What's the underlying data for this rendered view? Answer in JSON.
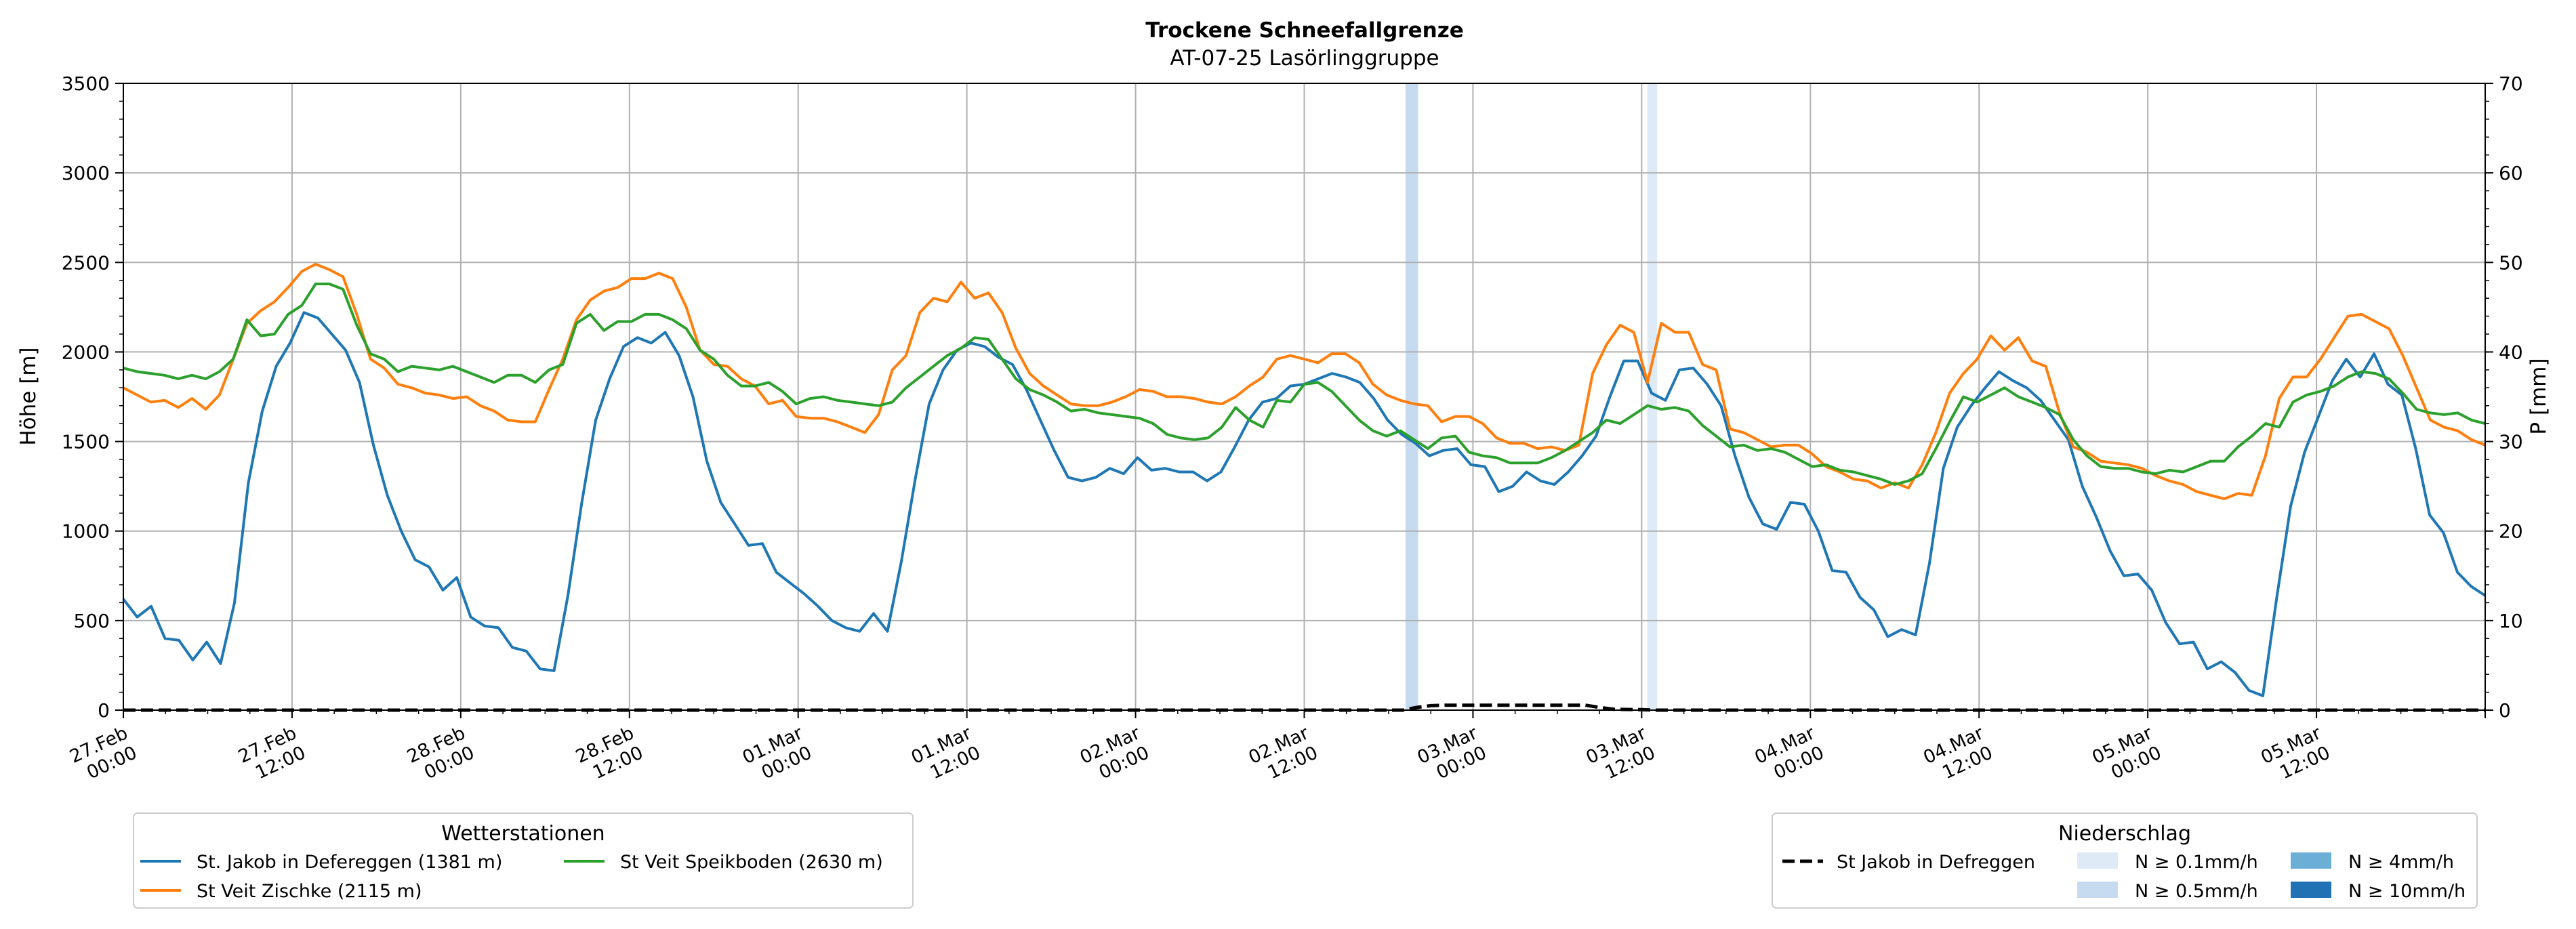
{
  "chart_data": {
    "type": "line",
    "title": "Trockene Schneefallgrenze",
    "subtitle": "AT-07-25 Lasörlinggruppe",
    "ylabel": "Höhe [m]",
    "y2label": "P [mm]",
    "ylim": [
      0,
      3500
    ],
    "y2lim": [
      0,
      70
    ],
    "xlim_hours": [
      0,
      168
    ],
    "grid": true,
    "yticks": [
      "0",
      "500",
      "1000",
      "1500",
      "2000",
      "2500",
      "3000",
      "3500"
    ],
    "y2ticks": [
      "0",
      "10",
      "20",
      "30",
      "40",
      "50",
      "60",
      "70"
    ],
    "xticks": [
      {
        "line1": "27.Feb",
        "line2": "00:00"
      },
      {
        "line1": "27.Feb",
        "line2": "12:00"
      },
      {
        "line1": "28.Feb",
        "line2": "00:00"
      },
      {
        "line1": "28.Feb",
        "line2": "12:00"
      },
      {
        "line1": "01.Mar",
        "line2": "00:00"
      },
      {
        "line1": "01.Mar",
        "line2": "12:00"
      },
      {
        "line1": "02.Mar",
        "line2": "00:00"
      },
      {
        "line1": "02.Mar",
        "line2": "12:00"
      },
      {
        "line1": "03.Mar",
        "line2": "00:00"
      },
      {
        "line1": "03.Mar",
        "line2": "12:00"
      },
      {
        "line1": "04.Mar",
        "line2": "00:00"
      },
      {
        "line1": "04.Mar",
        "line2": "12:00"
      },
      {
        "line1": "05.Mar",
        "line2": "00:00"
      },
      {
        "line1": "05.Mar",
        "line2": "12:00"
      }
    ],
    "precip_bands": [
      {
        "start": 91.2,
        "end": 92.1,
        "level": "N ≥ 0.5mm/h"
      },
      {
        "start": 108.4,
        "end": 109.1,
        "level": "N ≥ 0.1mm/h"
      }
    ],
    "colors": {
      "jakob": "#1f77b4",
      "zischke": "#ff7f0e",
      "speikboden": "#2ca02c",
      "precip": "#000000",
      "n01": "#deebf7",
      "n05": "#c6dbef",
      "n4": "#6baed6",
      "n10": "#2171b5",
      "grid": "#b0b0b0"
    },
    "series": [
      {
        "name": "St. Jakob in Defereggen (1381 m)",
        "color": "#1f77b4",
        "values": [
          620,
          520,
          580,
          400,
          390,
          280,
          380,
          260,
          600,
          1270,
          1670,
          1920,
          2050,
          2220,
          2190,
          2100,
          2010,
          1830,
          1480,
          1200,
          1000,
          840,
          800,
          670,
          740,
          520,
          470,
          460,
          350,
          330,
          230,
          220,
          640,
          1160,
          1620,
          1850,
          2030,
          2080,
          2050,
          2110,
          1980,
          1750,
          1390,
          1160,
          1040,
          920,
          930,
          770,
          710,
          650,
          580,
          500,
          460,
          440,
          540,
          440,
          830,
          1290,
          1710,
          1900,
          2010,
          2050,
          2030,
          1970,
          1930,
          1790,
          1620,
          1450,
          1300,
          1280,
          1300,
          1350,
          1320,
          1410,
          1340,
          1350,
          1330,
          1330,
          1280,
          1330,
          1470,
          1620,
          1720,
          1740,
          1810,
          1820,
          1850,
          1880,
          1860,
          1830,
          1740,
          1620,
          1540,
          1490,
          1420,
          1450,
          1460,
          1370,
          1360,
          1220,
          1250,
          1330,
          1280,
          1260,
          1330,
          1420,
          1530,
          1750,
          1950,
          1950,
          1770,
          1730,
          1900,
          1910,
          1820,
          1700,
          1420,
          1190,
          1040,
          1010,
          1160,
          1150,
          1000,
          780,
          770,
          630,
          560,
          410,
          450,
          420,
          820,
          1350,
          1580,
          1700,
          1800,
          1890,
          1840,
          1800,
          1730,
          1620,
          1510,
          1250,
          1080,
          890,
          750,
          760,
          670,
          490,
          370,
          380,
          230,
          270,
          210,
          110,
          80,
          630,
          1140,
          1440,
          1640,
          1840,
          1960,
          1860,
          1990,
          1820,
          1760,
          1460,
          1090,
          990,
          770,
          690,
          640
        ]
      },
      {
        "name": "St Veit Zischke (2115 m)",
        "color": "#ff7f0e",
        "values": [
          1800,
          1760,
          1720,
          1730,
          1690,
          1740,
          1680,
          1760,
          1960,
          2160,
          2230,
          2280,
          2360,
          2450,
          2490,
          2460,
          2420,
          2210,
          1960,
          1910,
          1820,
          1800,
          1770,
          1760,
          1740,
          1750,
          1700,
          1670,
          1620,
          1610,
          1610,
          1790,
          1960,
          2180,
          2290,
          2340,
          2360,
          2410,
          2410,
          2440,
          2410,
          2250,
          2010,
          1930,
          1920,
          1850,
          1810,
          1710,
          1730,
          1640,
          1630,
          1630,
          1610,
          1580,
          1550,
          1650,
          1900,
          1980,
          2220,
          2300,
          2280,
          2390,
          2300,
          2330,
          2220,
          2020,
          1880,
          1810,
          1760,
          1710,
          1700,
          1700,
          1720,
          1750,
          1790,
          1780,
          1750,
          1750,
          1740,
          1720,
          1710,
          1750,
          1810,
          1860,
          1960,
          1980,
          1960,
          1940,
          1990,
          1990,
          1940,
          1820,
          1760,
          1730,
          1710,
          1700,
          1610,
          1640,
          1640,
          1600,
          1520,
          1490,
          1490,
          1460,
          1470,
          1450,
          1480,
          1880,
          2040,
          2150,
          2110,
          1830,
          2160,
          2110,
          2110,
          1930,
          1900,
          1570,
          1550,
          1510,
          1470,
          1480,
          1480,
          1430,
          1360,
          1330,
          1290,
          1280,
          1240,
          1270,
          1240,
          1370,
          1550,
          1770,
          1880,
          1960,
          2090,
          2010,
          2080,
          1950,
          1920,
          1660,
          1470,
          1440,
          1390,
          1380,
          1370,
          1350,
          1310,
          1280,
          1260,
          1220,
          1200,
          1180,
          1210,
          1200,
          1420,
          1740,
          1860,
          1860,
          1960,
          2080,
          2200,
          2210,
          2170,
          2130,
          1980,
          1800,
          1620,
          1580,
          1560,
          1510,
          1480
        ]
      },
      {
        "name": "St Veit Speikboden (2630 m)",
        "color": "#2ca02c",
        "values": [
          1910,
          1890,
          1880,
          1870,
          1850,
          1870,
          1850,
          1890,
          1960,
          2180,
          2090,
          2100,
          2210,
          2260,
          2380,
          2380,
          2350,
          2150,
          1990,
          1960,
          1890,
          1920,
          1910,
          1900,
          1920,
          1890,
          1860,
          1830,
          1870,
          1870,
          1830,
          1900,
          1930,
          2160,
          2210,
          2120,
          2170,
          2170,
          2210,
          2210,
          2180,
          2130,
          2010,
          1960,
          1870,
          1810,
          1810,
          1830,
          1780,
          1710,
          1740,
          1750,
          1730,
          1720,
          1710,
          1700,
          1720,
          1800,
          1860,
          1920,
          1980,
          2020,
          2080,
          2070,
          1960,
          1850,
          1790,
          1760,
          1720,
          1670,
          1680,
          1660,
          1650,
          1640,
          1630,
          1600,
          1540,
          1520,
          1510,
          1520,
          1580,
          1690,
          1620,
          1580,
          1730,
          1720,
          1820,
          1830,
          1780,
          1700,
          1620,
          1560,
          1530,
          1560,
          1510,
          1460,
          1520,
          1530,
          1440,
          1420,
          1410,
          1380,
          1380,
          1380,
          1410,
          1450,
          1500,
          1550,
          1620,
          1600,
          1650,
          1700,
          1680,
          1690,
          1670,
          1590,
          1530,
          1470,
          1480,
          1450,
          1460,
          1440,
          1400,
          1360,
          1370,
          1340,
          1330,
          1310,
          1290,
          1260,
          1280,
          1320,
          1460,
          1610,
          1750,
          1720,
          1760,
          1800,
          1750,
          1720,
          1690,
          1650,
          1510,
          1420,
          1360,
          1350,
          1350,
          1330,
          1320,
          1340,
          1330,
          1360,
          1390,
          1390,
          1470,
          1530,
          1600,
          1580,
          1720,
          1760,
          1780,
          1810,
          1860,
          1890,
          1880,
          1850,
          1770,
          1680,
          1660,
          1650,
          1660,
          1620,
          1600
        ]
      },
      {
        "name": "St Jakob in Defreggen",
        "color": "#000000",
        "axis": "right",
        "style": "dashed",
        "x": [
          0,
          91,
          92,
          93,
          94,
          96,
          104,
          105,
          106,
          108,
          109,
          168
        ],
        "values": [
          0,
          0,
          0.3,
          0.5,
          0.55,
          0.55,
          0.55,
          0.3,
          0.1,
          0.05,
          0,
          0
        ]
      }
    ],
    "legend_left": {
      "title": "Wetterstationen",
      "placement": "bottom-left",
      "entries": [
        "St. Jakob in Defereggen (1381 m)",
        "St Veit Zischke (2115 m)",
        "St Veit Speikboden (2630 m)"
      ]
    },
    "legend_right": {
      "title": "Niederschlag",
      "placement": "bottom-right",
      "line_entry": "St Jakob in Defreggen",
      "patches": [
        "N ≥ 0.1mm/h",
        "N ≥ 0.5mm/h",
        "N ≥ 4mm/h",
        "N ≥ 10mm/h"
      ]
    }
  }
}
